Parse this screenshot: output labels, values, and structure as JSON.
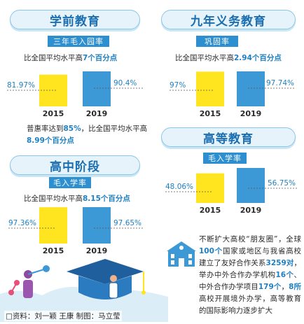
{
  "colors": {
    "bar_2015": "#ffe51f",
    "bar_2019": "#3d98d6",
    "accent": "#1e7fc2",
    "pill_text": "#1b6fb0"
  },
  "sections": {
    "preschool": {
      "title": "学前教育",
      "metric": "三年毛入园率",
      "cmp_prefix": "比全国平均水平高",
      "cmp_value": "7个百分点",
      "val_2015": "81.97%",
      "val_2019": "90.4%",
      "note_prefix": "普惠率达到",
      "note_value1": "85%",
      "note_mid": "，比全国平均水平高",
      "note_value2": "8.99个百分点"
    },
    "compulsory": {
      "title": "九年义务教育",
      "metric": "巩固率",
      "cmp_prefix": "比全国平均水平高",
      "cmp_value": "2.94个百分点",
      "val_2015": "97%",
      "val_2019": "97.74%"
    },
    "high_school": {
      "title": "高中阶段",
      "metric": "毛入学率",
      "cmp_prefix": "比全国平均水平高",
      "cmp_value": "8.15个百分点",
      "val_2015": "97.36%",
      "val_2019": "97.65%"
    },
    "higher": {
      "title": "高等教育",
      "metric": "毛入学率",
      "val_2015": "48.06%",
      "val_2019": "56.75%",
      "para_1": "不断扩大高校“朋友圈”，全球",
      "para_v1": "100个",
      "para_2": "国家或地区与我省高校建立了友好合作关系",
      "para_v2": "3259对",
      "para_3": "，举办中外合作办学机构",
      "para_v3": "16个",
      "para_4": "、中外合作办学项目",
      "para_v4": "179个",
      "para_5": "，",
      "para_v5": "8所",
      "para_6": "高校开展境外办学，高等教育的国际影响力逐步扩大"
    }
  },
  "credit": "资料：刘一颖   王康   制图：马立莹",
  "chart_data": [
    {
      "type": "bar",
      "title": "学前教育",
      "categories": [
        "2015",
        "2019"
      ],
      "series": [
        {
          "name": "三年毛入园率",
          "values": [
            81.97,
            90.4
          ]
        }
      ]
    },
    {
      "type": "bar",
      "title": "九年义务教育",
      "categories": [
        "2015",
        "2019"
      ],
      "series": [
        {
          "name": "巩固率",
          "values": [
            97,
            97.74
          ]
        }
      ]
    },
    {
      "type": "bar",
      "title": "高中阶段",
      "categories": [
        "2015",
        "2019"
      ],
      "series": [
        {
          "name": "毛入学率",
          "values": [
            97.36,
            97.65
          ]
        }
      ]
    },
    {
      "type": "bar",
      "title": "高等教育",
      "categories": [
        "2015",
        "2019"
      ],
      "series": [
        {
          "name": "毛入学率",
          "values": [
            48.06,
            56.75
          ]
        }
      ]
    }
  ]
}
